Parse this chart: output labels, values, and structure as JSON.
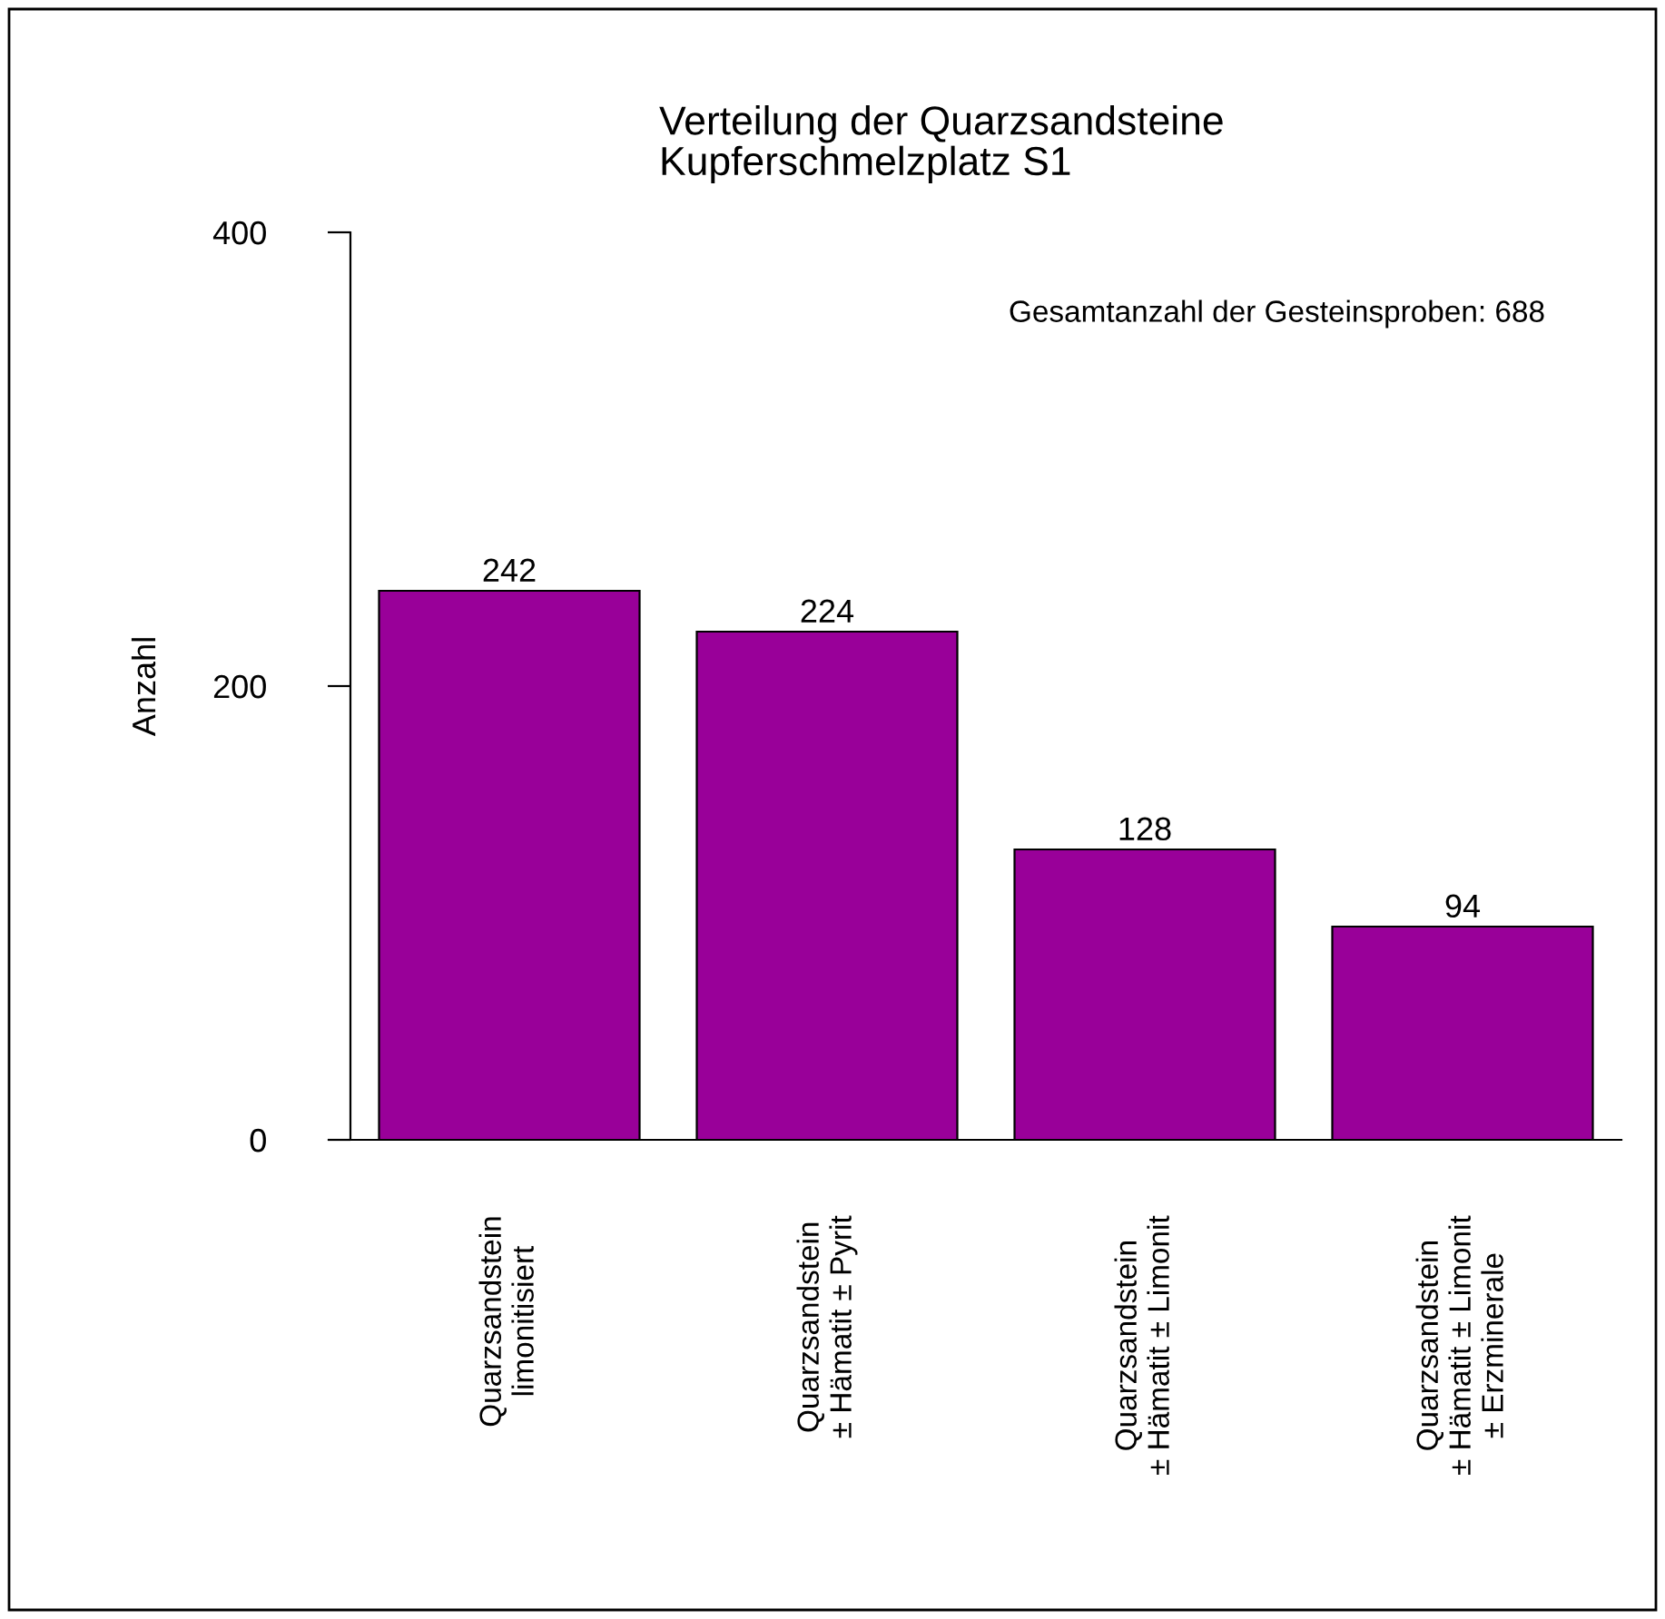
{
  "chart_data": {
    "type": "bar",
    "title": "Verteilung der Quarzsandsteine\nKupferschmelzplatz S1",
    "ylabel": "Anzahl",
    "annotations": [
      "Gesamtanzahl der Gesteinsproben: 688"
    ],
    "categories": [
      "Quarzsandstein\nlimonitisiert",
      "Quarzsandstein\n± Hämatit ± Pyrit",
      "Quarzsandstein\n± Hämatit ± Limonit",
      "Quarzsandstein\n± Hämatit ± Limonit\n± Erzminerale"
    ],
    "values": [
      242,
      224,
      128,
      94
    ],
    "color": "#990099",
    "data_labels": true,
    "ylim": [
      0,
      400
    ],
    "yticks": [
      0,
      200,
      400
    ],
    "grid": false,
    "legend": false
  }
}
